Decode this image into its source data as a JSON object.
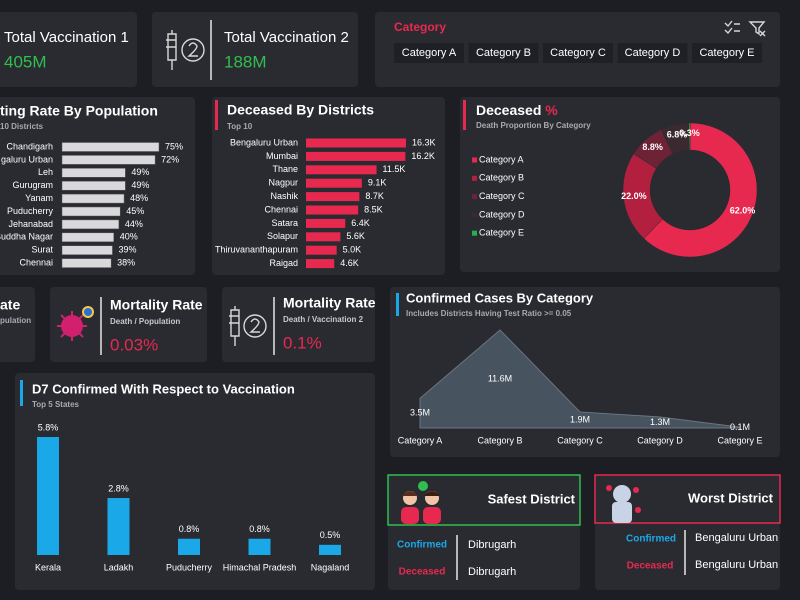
{
  "kpis": [
    {
      "title": "Total Vaccination 1",
      "value": "405M"
    },
    {
      "title": "Total Vaccination 2",
      "value": "188M"
    },
    {
      "title": "ate",
      "subtitle": "pulation"
    },
    {
      "title": "Mortality Rate",
      "subtitle": "Death / Population",
      "value": "0.03%"
    },
    {
      "title": "Mortality Rate",
      "subtitle": "Death /  Vaccination 2",
      "value": "0.1%"
    }
  ],
  "filter": {
    "title": "Category",
    "options": [
      "Category A",
      "Category B",
      "Category C",
      "Category D",
      "Category E"
    ]
  },
  "chart_data": [
    {
      "type": "bar",
      "horizontal": true,
      "title": "ting Rate By Population",
      "subtitle": "10 Districts",
      "categories": [
        "Chandigarh",
        "galuru Urban",
        "Leh",
        "Gurugram",
        "Yanam",
        "Puducherry",
        "Jehanabad",
        "Buddha Nagar",
        "Surat",
        "Chennai"
      ],
      "values": [
        75,
        72,
        49,
        49,
        48,
        45,
        44,
        40,
        39,
        38
      ],
      "value_labels": [
        "75%",
        "72%",
        "49%",
        "49%",
        "48%",
        "45%",
        "44%",
        "40%",
        "39%",
        "38%"
      ],
      "color": "#d9d9dc"
    },
    {
      "type": "bar",
      "horizontal": true,
      "title": "Deceased By Districts",
      "subtitle": "Top 10",
      "categories": [
        "Bengaluru Urban",
        "Mumbai",
        "Thane",
        "Nagpur",
        "Nashik",
        "Chennai",
        "Satara",
        "Solapur",
        "Thiruvananthapuram",
        "Raigad"
      ],
      "values": [
        16300,
        16200,
        11500,
        9100,
        8700,
        8500,
        6400,
        5600,
        5000,
        4600
      ],
      "value_labels": [
        "16.3K",
        "16.2K",
        "11.5K",
        "9.1K",
        "8.7K",
        "8.5K",
        "6.4K",
        "5.6K",
        "5.0K",
        "4.6K"
      ],
      "color": "#e8294f"
    },
    {
      "type": "pie",
      "donut": true,
      "title": "Deceased",
      "title_symbol": "%",
      "subtitle": "Death Proportion By Category",
      "categories": [
        "Category A",
        "Category B",
        "Category C",
        "Category D",
        "Category E"
      ],
      "values": [
        62.0,
        22.0,
        8.8,
        6.8,
        0.3
      ],
      "value_labels": [
        "62.0%",
        "22.0%",
        "8.8%",
        "6.8%",
        "0.3%"
      ],
      "colors": [
        "#e8294f",
        "#b3203f",
        "#6e2236",
        "#3a2a30",
        "#22b14c"
      ]
    },
    {
      "type": "area",
      "title": "Confirmed Cases By Category",
      "subtitle": "Includes Districts Having Test Ratio >= 0.05",
      "categories": [
        "Category A",
        "Category B",
        "Category C",
        "Category D",
        "Category E"
      ],
      "values": [
        3500000,
        11600000,
        1900000,
        1300000,
        100000
      ],
      "value_labels": [
        "3.5M",
        "11.6M",
        "1.9M",
        "1.3M",
        "0.1M"
      ],
      "color": "#47535e"
    },
    {
      "type": "bar",
      "horizontal": false,
      "title": "D7 Confirmed With Respect to Vaccination",
      "subtitle": "Top 5 States",
      "categories": [
        "Kerala",
        "Ladakh",
        "Puducherry",
        "Himachal Pradesh",
        "Nagaland"
      ],
      "values": [
        5.8,
        2.8,
        0.8,
        0.8,
        0.5
      ],
      "value_labels": [
        "5.8%",
        "2.8%",
        "0.8%",
        "0.8%",
        "0.5%"
      ],
      "color": "#1aa8e8"
    }
  ],
  "districts": [
    {
      "title": "Safest District",
      "rows": [
        {
          "label": "Confirmed",
          "value": "Dibrugarh"
        },
        {
          "label": "Deceased",
          "value": "Dibrugarh"
        }
      ]
    },
    {
      "title": "Worst District",
      "rows": [
        {
          "label": "Confirmed",
          "value": "Bengaluru Urban"
        },
        {
          "label": "Deceased",
          "value": "Bengaluru Urban"
        }
      ]
    }
  ]
}
